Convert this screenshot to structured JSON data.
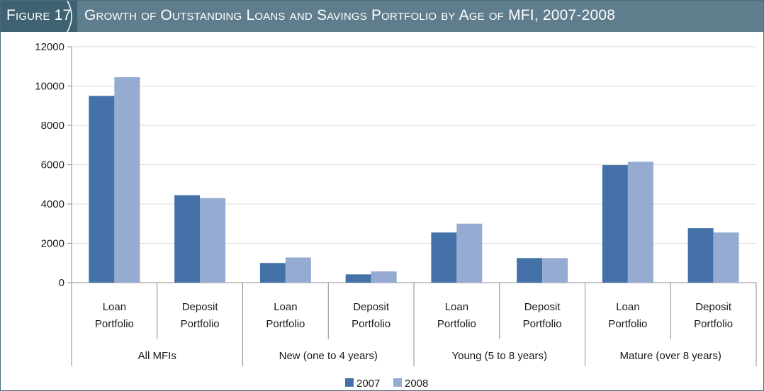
{
  "figure": {
    "label": "Figure 17",
    "title": "Growth of Outstanding Loans and Savings Portfolio by Age of MFI, 2007-2008"
  },
  "chart_data": {
    "type": "bar",
    "ylim": [
      0,
      12000
    ],
    "yticks": [
      0,
      2000,
      4000,
      6000,
      8000,
      10000,
      12000
    ],
    "grid": true,
    "legend_position": "bottom",
    "groups": [
      {
        "label": "All MFIs",
        "categories": [
          [
            "Loan",
            "Portfolio"
          ],
          [
            "Deposit",
            "Portfolio"
          ]
        ]
      },
      {
        "label": "New (one to 4 years)",
        "categories": [
          [
            "Loan",
            "Portfolio"
          ],
          [
            "Deposit",
            "Portfolio"
          ]
        ]
      },
      {
        "label": "Young (5 to 8 years)",
        "categories": [
          [
            "Loan",
            "Portfolio"
          ],
          [
            "Deposit",
            "Portfolio"
          ]
        ]
      },
      {
        "label": "Mature (over 8 years)",
        "categories": [
          [
            "Loan",
            "Portfolio"
          ],
          [
            "Deposit",
            "Portfolio"
          ]
        ]
      }
    ],
    "series": [
      {
        "name": "2007",
        "color": "#4472a8",
        "values": [
          9500,
          4450,
          1000,
          420,
          2550,
          1250,
          5980,
          2770
        ]
      },
      {
        "name": "2008",
        "color": "#96abd2",
        "values": [
          10450,
          4300,
          1280,
          570,
          3000,
          1250,
          6150,
          2550
        ]
      }
    ]
  }
}
